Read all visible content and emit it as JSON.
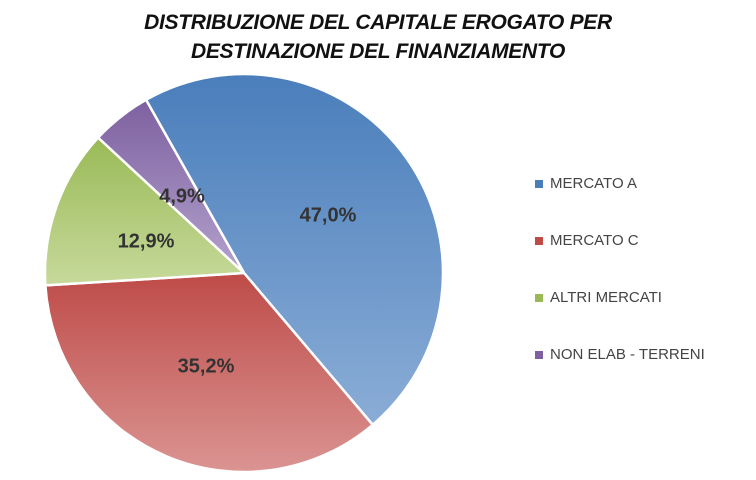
{
  "chart_data": {
    "type": "pie",
    "title": "DISTRIBUZIONE DEL CAPITALE EROGATO PER DESTINAZIONE DEL FINANZIAMENTO",
    "title_lines": [
      "DISTRIBUZIONE DEL CAPITALE EROGATO PER",
      "DESTINAZIONE DEL FINANZIAMENTO"
    ],
    "categories": [
      "MERCATO A",
      "MERCATO C",
      "ALTRI MERCATI",
      "NON ELAB - TERRENI"
    ],
    "values": [
      47.0,
      35.2,
      12.9,
      4.9
    ],
    "labels": [
      "47,0%",
      "35,2%",
      "12,9%",
      "4,9%"
    ],
    "colors": [
      "#4a7ebb",
      "#be4b48",
      "#98b954",
      "#7d60a0"
    ],
    "colors_light": [
      "#93b3da",
      "#da9492",
      "#c6d99a",
      "#b3a2cc"
    ],
    "legend_position": "right"
  }
}
